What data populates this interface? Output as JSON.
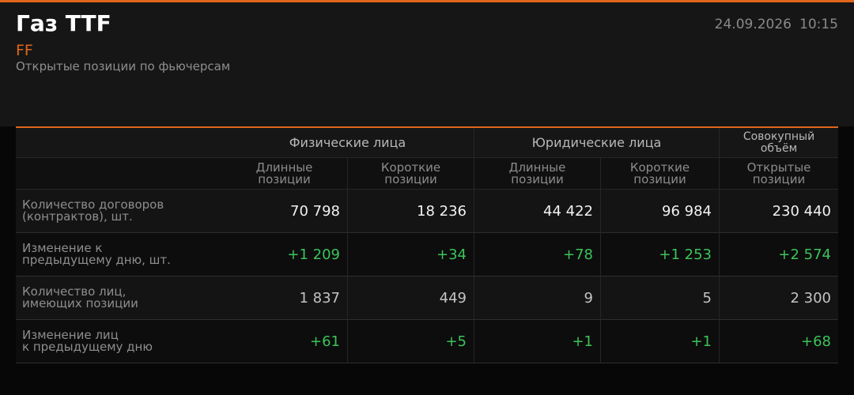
{
  "header": {
    "title": "Газ TTF",
    "code": "FF",
    "subtitle": "Открытые позиции по фьючерсам",
    "date": "24.09.2026",
    "time": "10:15"
  },
  "table": {
    "groups": [
      "Физические лица",
      "Юридические лица",
      [
        "Совокупный",
        "объём"
      ]
    ],
    "columns": [
      [
        "Длинные",
        "позиции"
      ],
      [
        "Короткие",
        "позиции"
      ],
      [
        "Длинные",
        "позиции"
      ],
      [
        "Короткие",
        "позиции"
      ],
      [
        "Открытые",
        "позиции"
      ]
    ],
    "rows": [
      {
        "label": [
          "Количество договоров",
          "(контрактов), шт."
        ],
        "cells": [
          "70 798",
          "18 236",
          "44 422",
          "96 984",
          "230 440"
        ]
      },
      {
        "label": [
          "Изменение к",
          "предыдущему дню, шт."
        ],
        "cells": [
          "+1 209",
          "+34",
          "+78",
          "+1 253",
          "+2 574"
        ]
      },
      {
        "label": [
          "Количество лиц,",
          "имеющих позиции"
        ],
        "cells": [
          "1 837",
          "449",
          "9",
          "5",
          "2 300"
        ]
      },
      {
        "label": [
          "Изменение лиц",
          "к предыдущему дню"
        ],
        "cells": [
          "+61",
          "+5",
          "+1",
          "+1",
          "+68"
        ]
      }
    ]
  }
}
